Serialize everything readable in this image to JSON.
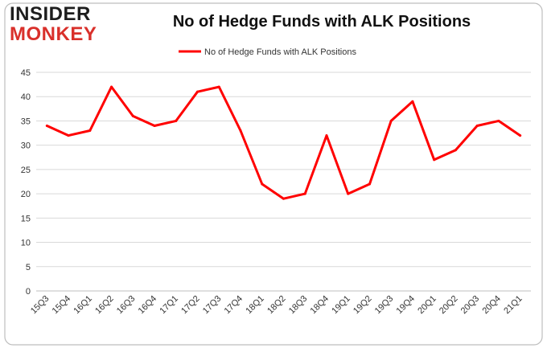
{
  "logo": {
    "line1": "INSIDER",
    "line2": "MONKEY"
  },
  "colors": {
    "series": "#ff0000",
    "grid": "#d9d9d9",
    "logo_dark": "#1d1d1d",
    "logo_red": "#d9302b"
  },
  "chart_data": {
    "type": "line",
    "title": "No of Hedge Funds with ALK Positions",
    "xlabel": "",
    "ylabel": "",
    "categories": [
      "15Q3",
      "15Q4",
      "16Q1",
      "16Q2",
      "16Q3",
      "16Q4",
      "17Q1",
      "17Q2",
      "17Q3",
      "17Q4",
      "18Q1",
      "18Q2",
      "18Q3",
      "18Q4",
      "19Q1",
      "19Q2",
      "19Q3",
      "19Q4",
      "20Q1",
      "20Q2",
      "20Q3",
      "20Q4",
      "21Q1"
    ],
    "series": [
      {
        "name": "No of Hedge Funds with ALK Positions",
        "values": [
          34,
          32,
          33,
          42,
          36,
          34,
          35,
          41,
          42,
          33,
          22,
          19,
          20,
          32,
          20,
          22,
          35,
          39,
          27,
          29,
          34,
          35,
          32
        ]
      }
    ],
    "ylim": [
      0,
      45
    ],
    "yticks": [
      0,
      5,
      10,
      15,
      20,
      25,
      30,
      35,
      40,
      45
    ],
    "grid": true,
    "legend": "top-center"
  }
}
